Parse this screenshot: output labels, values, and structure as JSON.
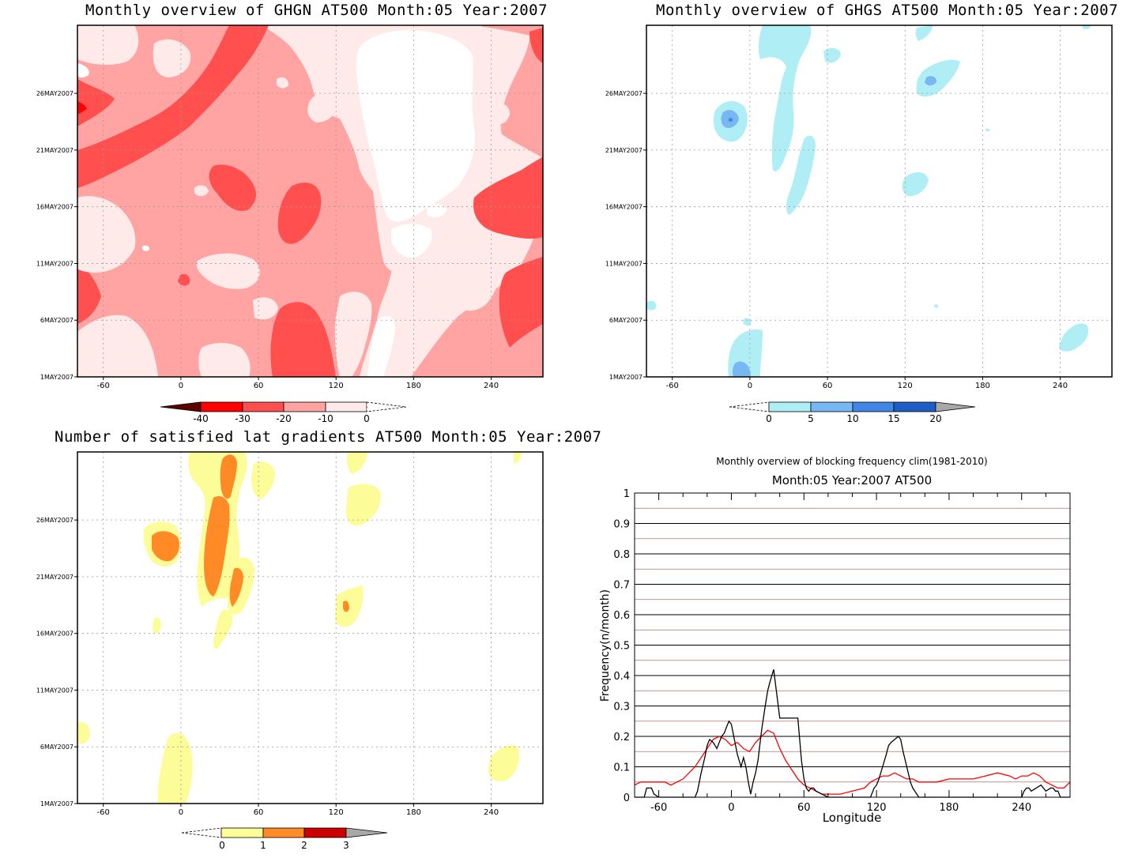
{
  "colors": {
    "red_scale": [
      "#5c0000",
      "#ff0000",
      "#ff4f4f",
      "#ffa3a3",
      "#ffeaea"
    ],
    "blue_scale": [
      "#b0eef6",
      "#78b8f2",
      "#3f86e6",
      "#1c5dc6"
    ],
    "yellow_scale": [
      "#fcfc99",
      "#ff8a26",
      "#cc0000"
    ],
    "overflow_gray": "#a8a8a8",
    "freq_black": "#000000",
    "freq_red": "#ff0000",
    "minor_grid": "#b07070"
  },
  "axes_common": {
    "x_ticks": [
      "-60",
      "0",
      "60",
      "120",
      "180",
      "240"
    ],
    "y_ticks": [
      "1MAY2007",
      "6MAY2007",
      "11MAY2007",
      "16MAY2007",
      "21MAY2007",
      "26MAY2007"
    ]
  },
  "panels": {
    "ghgn": {
      "title": "Monthly overview of GHGN AT500 Month:05 Year:2007",
      "colorbar_labels": [
        "-40",
        "-30",
        "-20",
        "-10",
        "0"
      ]
    },
    "ghgs": {
      "title": "Monthly overview of GHGS AT500 Month:05 Year:2007",
      "colorbar_labels": [
        "0",
        "5",
        "10",
        "15",
        "20"
      ]
    },
    "satisfied": {
      "title": "Number of satisfied lat gradients AT500 Month:05 Year:2007",
      "colorbar_labels": [
        "0",
        "1",
        "2",
        "3"
      ]
    },
    "frequency": {
      "title": "Monthly overview of blocking frequency clim(1981-2010)",
      "subtitle": "Month:05 Year:2007  AT500"
    }
  },
  "chart_data": [
    {
      "type": "heatmap",
      "title": "Monthly overview of GHGN AT500 Month:05 Year:2007",
      "x_ticks": [
        -60,
        0,
        60,
        120,
        180,
        240
      ],
      "xlim": [
        -80,
        280
      ],
      "y_ticks": [
        "1MAY2007",
        "6MAY2007",
        "11MAY2007",
        "16MAY2007",
        "21MAY2007",
        "26MAY2007"
      ],
      "levels": [
        -40,
        -30,
        -20,
        -10,
        0
      ]
    },
    {
      "type": "heatmap",
      "title": "Monthly overview of GHGS AT500 Month:05 Year:2007",
      "x_ticks": [
        -60,
        0,
        60,
        120,
        180,
        240
      ],
      "xlim": [
        -80,
        280
      ],
      "y_ticks": [
        "1MAY2007",
        "6MAY2007",
        "11MAY2007",
        "16MAY2007",
        "21MAY2007",
        "26MAY2007"
      ],
      "levels": [
        0,
        5,
        10,
        15,
        20
      ]
    },
    {
      "type": "heatmap",
      "title": "Number of satisfied lat gradients AT500 Month:05 Year:2007",
      "x_ticks": [
        -60,
        0,
        60,
        120,
        180,
        240
      ],
      "xlim": [
        -80,
        280
      ],
      "y_ticks": [
        "1MAY2007",
        "6MAY2007",
        "11MAY2007",
        "16MAY2007",
        "21MAY2007",
        "26MAY2007"
      ],
      "levels": [
        0,
        1,
        2,
        3
      ]
    },
    {
      "type": "line",
      "title": "Monthly overview of blocking frequency clim(1981-2010)",
      "subtitle": "Month:05 Year:2007  AT500",
      "xlabel": "Longitude",
      "ylabel": "Frequency(n/month)",
      "xlim": [
        -80,
        280
      ],
      "ylim": [
        0,
        1
      ],
      "x_ticks": [
        -60,
        0,
        60,
        120,
        180,
        240
      ],
      "y_ticks": [
        "0",
        "0.1",
        "0.2",
        "0.3",
        "0.4",
        "0.5",
        "0.6",
        "0.7",
        "0.8",
        "0.9",
        "1"
      ],
      "grid": true,
      "series": [
        {
          "color": "#000000",
          "x": [
            -80,
            -72,
            -70,
            -66,
            -64,
            -60,
            -55,
            -50,
            -45,
            -40,
            -35,
            -30,
            -28,
            -25,
            -22,
            -20,
            -18,
            -15,
            -12,
            -10,
            -8,
            -6,
            -4,
            -2,
            0,
            2,
            5,
            8,
            10,
            12,
            14,
            16,
            18,
            20,
            22,
            25,
            28,
            30,
            32,
            35,
            40,
            45,
            50,
            55,
            58,
            60,
            62,
            64,
            66,
            68,
            70,
            80,
            90,
            100,
            110,
            115,
            118,
            120,
            122,
            125,
            128,
            130,
            132,
            135,
            138,
            140,
            142,
            145,
            148,
            150,
            155,
            160,
            180,
            200,
            220,
            240,
            242,
            244,
            246,
            248,
            252,
            256,
            260,
            264,
            266,
            268,
            270,
            272,
            280
          ],
          "y": [
            0,
            0,
            0.03,
            0.03,
            0.01,
            0,
            0,
            0,
            0,
            0,
            0,
            0,
            0.02,
            0.08,
            0.13,
            0.17,
            0.19,
            0.18,
            0.16,
            0.18,
            0.2,
            0.21,
            0.23,
            0.25,
            0.24,
            0.2,
            0.14,
            0.1,
            0.13,
            0.1,
            0.05,
            0.01,
            0.05,
            0.08,
            0.12,
            0.22,
            0.3,
            0.35,
            0.38,
            0.42,
            0.26,
            0.26,
            0.26,
            0.26,
            0.12,
            0.06,
            0.03,
            0.02,
            0.03,
            0.03,
            0.02,
            0,
            0,
            0,
            0,
            0,
            0.03,
            0.04,
            0.06,
            0.1,
            0.14,
            0.17,
            0.18,
            0.19,
            0.2,
            0.19,
            0.15,
            0.1,
            0.05,
            0.03,
            0,
            0,
            0,
            0,
            0,
            0,
            0.02,
            0.03,
            0.03,
            0.02,
            0.03,
            0.04,
            0.02,
            0.03,
            0.03,
            0.02,
            0.02,
            0,
            0
          ]
        },
        {
          "color": "#ff0000",
          "x": [
            -80,
            -75,
            -70,
            -65,
            -60,
            -55,
            -50,
            -45,
            -40,
            -35,
            -30,
            -25,
            -20,
            -15,
            -10,
            -5,
            0,
            5,
            10,
            15,
            20,
            25,
            30,
            35,
            40,
            45,
            50,
            55,
            60,
            65,
            70,
            75,
            80,
            90,
            100,
            110,
            115,
            120,
            125,
            130,
            135,
            140,
            145,
            150,
            155,
            160,
            170,
            180,
            190,
            200,
            210,
            220,
            230,
            235,
            240,
            245,
            250,
            255,
            260,
            265,
            270,
            275,
            280
          ],
          "y": [
            0.04,
            0.05,
            0.05,
            0.05,
            0.05,
            0.05,
            0.04,
            0.05,
            0.06,
            0.08,
            0.1,
            0.13,
            0.16,
            0.19,
            0.2,
            0.19,
            0.17,
            0.18,
            0.16,
            0.15,
            0.18,
            0.2,
            0.22,
            0.21,
            0.16,
            0.12,
            0.09,
            0.06,
            0.04,
            0.03,
            0.02,
            0.01,
            0.01,
            0.01,
            0.02,
            0.03,
            0.05,
            0.06,
            0.07,
            0.07,
            0.08,
            0.07,
            0.06,
            0.06,
            0.05,
            0.05,
            0.05,
            0.06,
            0.06,
            0.06,
            0.07,
            0.08,
            0.07,
            0.06,
            0.07,
            0.07,
            0.08,
            0.07,
            0.05,
            0.04,
            0.03,
            0.03,
            0.05
          ]
        }
      ]
    }
  ]
}
